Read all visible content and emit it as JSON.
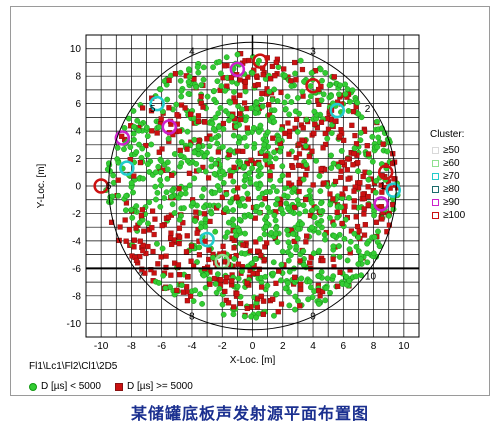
{
  "chart_data": {
    "type": "scatter",
    "xlabel": "X-Loc. [m]",
    "ylabel": "Y-Loc. [m]",
    "xlim": [
      -11,
      11
    ],
    "ylim": [
      -11,
      11
    ],
    "x_ticks": [
      -10,
      -8,
      -6,
      -4,
      -2,
      0,
      2,
      4,
      6,
      8,
      10
    ],
    "y_ticks": [
      -10,
      -8,
      -6,
      -4,
      -2,
      0,
      2,
      4,
      6,
      8,
      10
    ],
    "grid": true,
    "tank_radius": 9.5,
    "segment_labels": [
      {
        "text": "4",
        "x": -4,
        "y": 9.8
      },
      {
        "text": "3",
        "x": 4,
        "y": 9.8
      },
      {
        "text": "5",
        "x": -6.6,
        "y": 5.6
      },
      {
        "text": "2",
        "x": 7.6,
        "y": 5.6
      },
      {
        "text": "6",
        "x": -9.5,
        "y": 0
      },
      {
        "text": "1",
        "x": 8.6,
        "y": 0
      },
      {
        "text": "7",
        "x": -7.4,
        "y": -6.6
      },
      {
        "text": "10",
        "x": 7.8,
        "y": -6.6
      },
      {
        "text": "8",
        "x": -4,
        "y": -9.5
      },
      {
        "text": "9",
        "x": 4,
        "y": -9.5
      }
    ],
    "series": [
      {
        "name": "D [µs] < 5000",
        "marker": "circle",
        "color": "#33cc33"
      },
      {
        "name": "D [µs] >= 5000",
        "marker": "square",
        "color": "#cc1111"
      }
    ],
    "cluster_legend_title": "Cluster:",
    "clusters": [
      {
        "label": "≥50",
        "color": "#d9d9d9"
      },
      {
        "label": "≥60",
        "color": "#8fe08f"
      },
      {
        "label": "≥70",
        "color": "#22cccc"
      },
      {
        "label": "≥80",
        "color": "#1b6b6b"
      },
      {
        "label": "≥90",
        "color": "#cc22cc"
      },
      {
        "label": "≥100",
        "color": "#cc1111"
      }
    ],
    "cluster_points": [
      {
        "x": -6.3,
        "y": 6.0,
        "level": "≥70"
      },
      {
        "x": 5.6,
        "y": 5.5,
        "level": "≥70"
      },
      {
        "x": -8.3,
        "y": 1.3,
        "level": "≥70"
      },
      {
        "x": 9.3,
        "y": -0.3,
        "level": "≥70"
      },
      {
        "x": -3.0,
        "y": -3.9,
        "level": "≥70"
      },
      {
        "x": -2.0,
        "y": -5.5,
        "level": "≥60"
      },
      {
        "x": -8.6,
        "y": 3.5,
        "level": "≥90"
      },
      {
        "x": -5.5,
        "y": 4.3,
        "level": "≥90"
      },
      {
        "x": -1.0,
        "y": 8.5,
        "level": "≥90"
      },
      {
        "x": 8.5,
        "y": -1.3,
        "level": "≥90"
      },
      {
        "x": 0.5,
        "y": 9.1,
        "level": "≥100"
      },
      {
        "x": 4.0,
        "y": 7.3,
        "level": "≥100"
      },
      {
        "x": 8.8,
        "y": 1.0,
        "level": "≥100"
      },
      {
        "x": -10.0,
        "y": 0.0,
        "level": "≥100"
      }
    ]
  },
  "path_text": "Fl1\\Lc1\\Fl2\\Cl1\\2D5",
  "legend_labels": {
    "green": "D [µs] < 5000",
    "red": "D [µs] >= 5000"
  },
  "caption": "某储罐底板声发射源平面布置图"
}
